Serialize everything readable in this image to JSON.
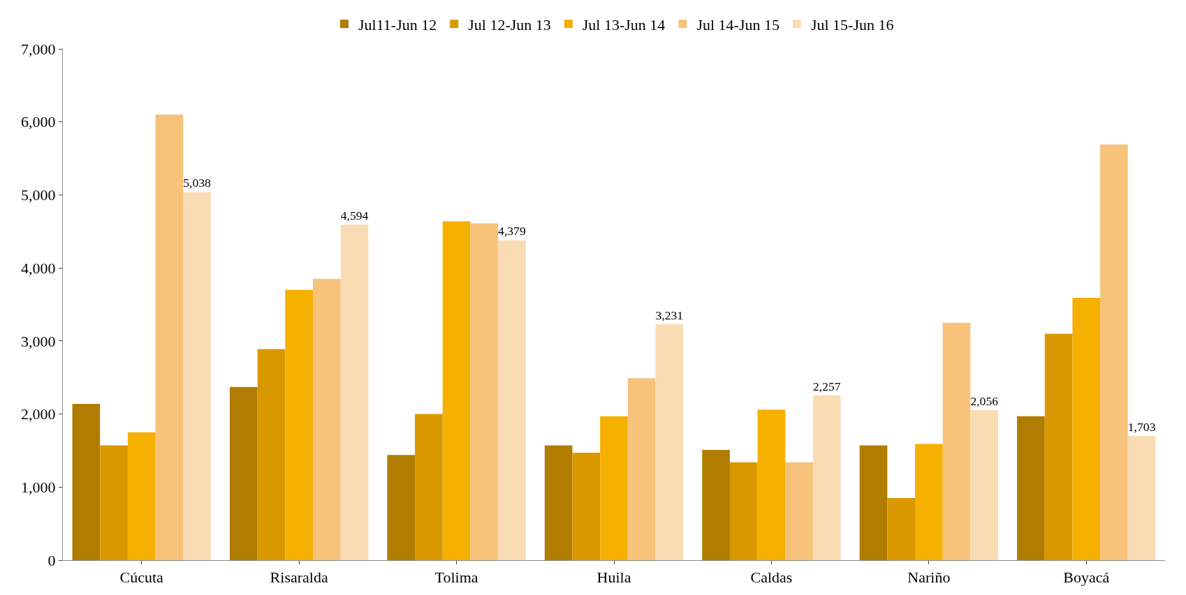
{
  "chart_data": {
    "type": "bar",
    "categories": [
      "Cúcuta",
      "Risaralda",
      "Tolima",
      "Huila",
      "Caldas",
      "Nariño",
      "Boyacá"
    ],
    "series": [
      {
        "name": "Jul11-Jun 12",
        "color": "#b07d00",
        "values": [
          2140,
          2370,
          1440,
          1570,
          1510,
          1570,
          1970
        ]
      },
      {
        "name": "Jul 12-Jun 13",
        "color": "#d99800",
        "values": [
          1570,
          2890,
          2000,
          1470,
          1340,
          850,
          3100
        ]
      },
      {
        "name": "Jul 13-Jun 14",
        "color": "#f5b000",
        "values": [
          1750,
          3700,
          4640,
          1970,
          2060,
          1590,
          3590
        ]
      },
      {
        "name": "Jul 14-Jun 15",
        "color": "#f7c27a",
        "values": [
          6100,
          3850,
          4610,
          2490,
          1340,
          3250,
          5690
        ]
      },
      {
        "name": "Jul 15-Jun 16",
        "color": "#fadcb4",
        "values": [
          5038,
          4594,
          4379,
          3231,
          2257,
          2056,
          1703
        ],
        "value_labels": [
          "5,038",
          "4,594",
          "4,379",
          "3,231",
          "2,257",
          "2,056",
          "1,703"
        ]
      }
    ],
    "ylim": [
      0,
      7000
    ],
    "yticks": [
      {
        "value": 0,
        "label": "0"
      },
      {
        "value": 1000,
        "label": "1,000"
      },
      {
        "value": 2000,
        "label": "2,000"
      },
      {
        "value": 3000,
        "label": "3,000"
      },
      {
        "value": 4000,
        "label": "4,000"
      },
      {
        "value": 5000,
        "label": "5,000"
      },
      {
        "value": 6000,
        "label": "6,000"
      },
      {
        "value": 7000,
        "label": "7,000"
      }
    ],
    "grid": false,
    "legend": "top"
  }
}
